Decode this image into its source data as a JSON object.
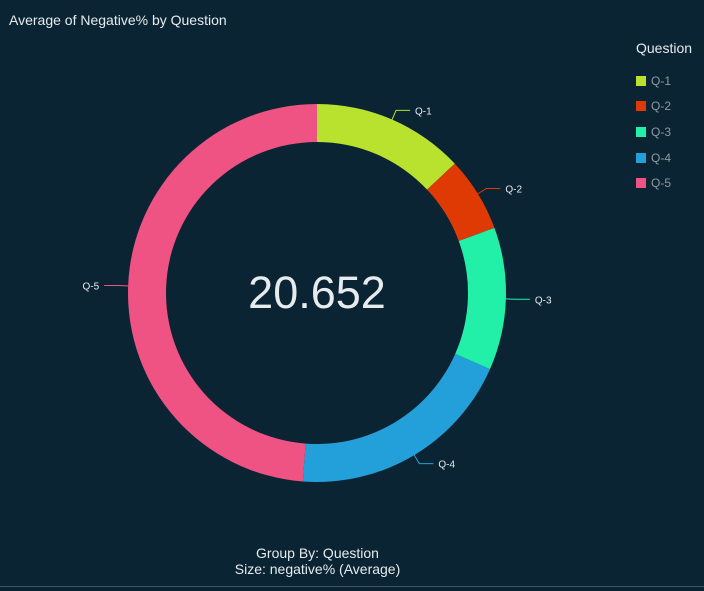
{
  "chart_data": {
    "type": "pie",
    "title": "Average of Negative%",
    "title_suffix": "by Question",
    "center_value": "20.652",
    "legend": {
      "title": "Question",
      "placement": "right"
    },
    "categories": [
      "Q-1",
      "Q-2",
      "Q-3",
      "Q-4",
      "Q-5"
    ],
    "values": [
      13.0,
      6.4,
      12.2,
      19.6,
      48.8
    ],
    "colors": [
      "#b8e22e",
      "#e03a04",
      "#22f0a8",
      "#239fd9",
      "#ee5383"
    ],
    "footer": {
      "group_by": "Group By: Question",
      "size": "Size: negative% (Average)"
    }
  }
}
